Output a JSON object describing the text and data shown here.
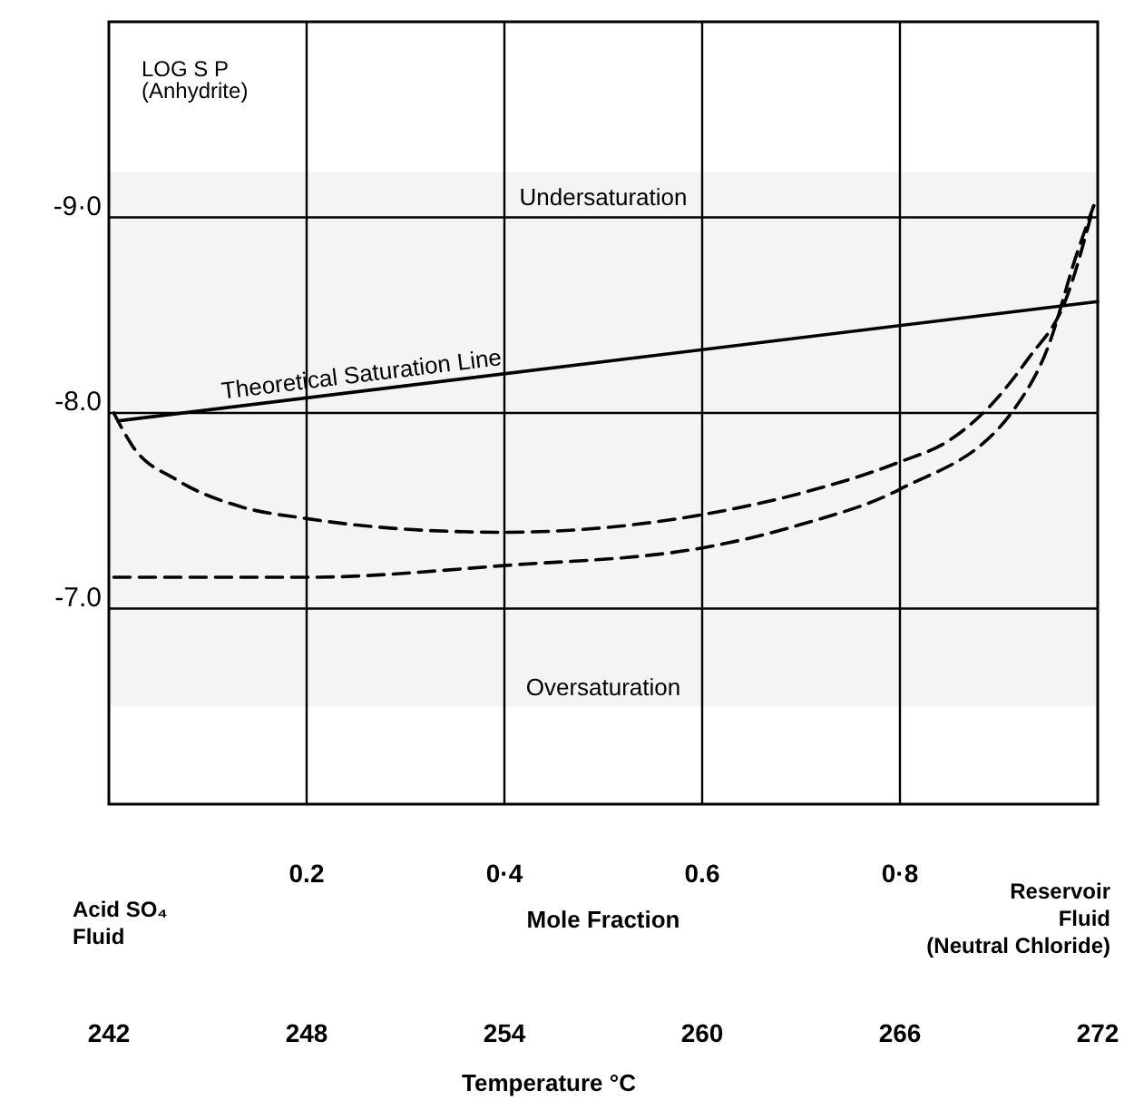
{
  "chart_data": {
    "type": "line",
    "ylabel": "LOG S P\n(Anhydrite)",
    "xlabel": "Mole Fraction",
    "x2label": "Temperature °C",
    "xlim": [
      0,
      1
    ],
    "xticks": [
      {
        "value": 0.2,
        "label": "0.2"
      },
      {
        "value": 0.4,
        "label": "0·4"
      },
      {
        "value": 0.6,
        "label": "0.6"
      },
      {
        "value": 0.8,
        "label": "0·8"
      }
    ],
    "x2lim": [
      242,
      272
    ],
    "x2ticks": [
      242,
      248,
      254,
      260,
      266,
      272
    ],
    "ylim": [
      -6,
      -10
    ],
    "yticks": [
      {
        "value": -9,
        "label": "-9·0"
      },
      {
        "value": -8,
        "label": "-8.0"
      },
      {
        "value": -7,
        "label": "-7.0"
      }
    ],
    "grid": true,
    "legend": false,
    "bands": [
      {
        "axis": "y",
        "from": -9.23,
        "to": -6.5,
        "color": "#f4f4f4"
      }
    ],
    "annotations": [
      "Undersaturation",
      "Oversaturation",
      "Acid SO₄\nFluid",
      "Reservoir\nFluid\n(Neutral  Chloride)"
    ],
    "series": [
      {
        "name": "Theoretical Saturation Line",
        "color": "#000000",
        "line_style": "solid",
        "x": [
          0.01,
          1
        ],
        "values": [
          -7.96,
          -8.57
        ]
      },
      {
        "color": "#000000",
        "line_style": "dashed",
        "x": [
          0.005,
          0.024,
          0.068,
          0.134,
          0.2,
          0.32,
          0.4,
          0.6,
          0.7,
          0.8,
          0.85,
          0.89,
          0.93,
          0.967,
          0.996
        ],
        "values": [
          -8.0,
          -7.83,
          -7.66,
          -7.52,
          -7.46,
          -7.4,
          -7.39,
          -7.48,
          -7.59,
          -7.75,
          -7.86,
          -8.03,
          -8.28,
          -8.57,
          -9.06
        ]
      },
      {
        "color": "#000000",
        "line_style": "dashed",
        "x": [
          0.005,
          0.2,
          0.4,
          0.6,
          0.7,
          0.8,
          0.917,
          0.95,
          0.978,
          0.996
        ],
        "values": [
          -7.16,
          -7.16,
          -7.22,
          -7.31,
          -7.43,
          -7.61,
          -8.03,
          -8.34,
          -8.8,
          -9.06
        ]
      }
    ]
  }
}
